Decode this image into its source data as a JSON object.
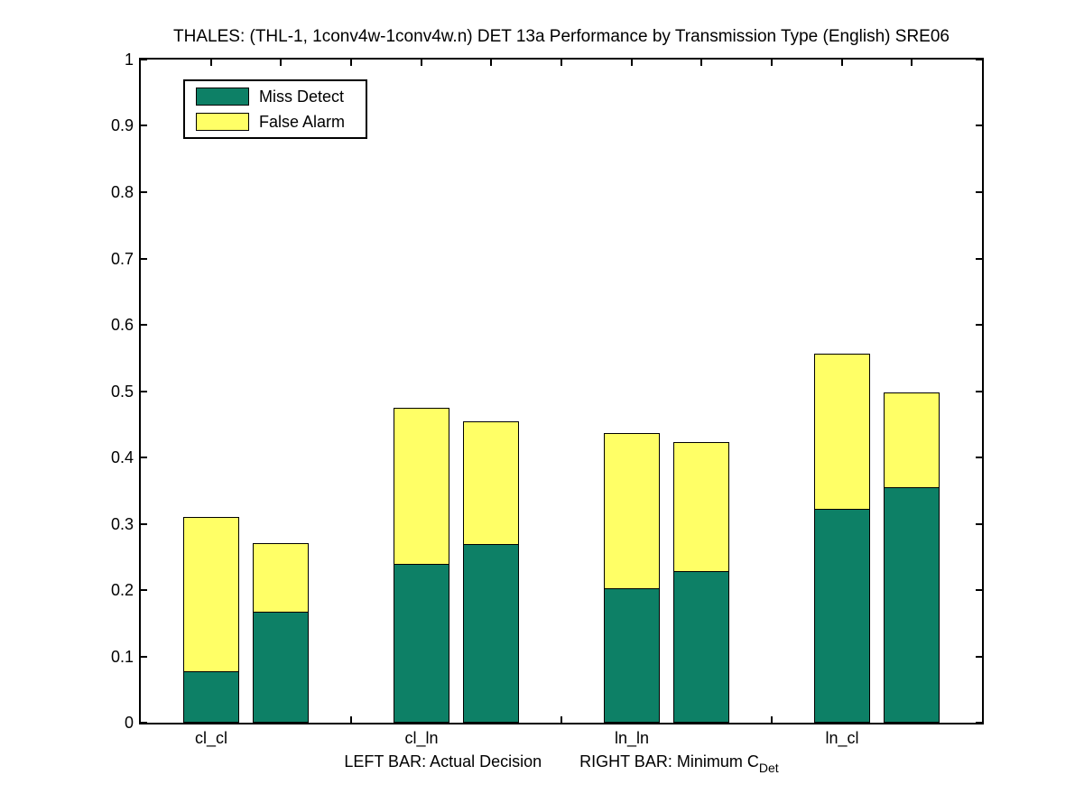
{
  "title": "THALES: (THL-1, 1conv4w-1conv4w.n) DET 13a Performance by Transmission Type (English) SRE06",
  "legend": {
    "position": "top-left",
    "items": [
      {
        "label": "Miss Detect",
        "color": "#0d8066"
      },
      {
        "label": "False Alarm",
        "color": "#ffff66"
      }
    ]
  },
  "footnote": {
    "left_text": "LEFT BAR: Actual Decision",
    "right_text": "RIGHT BAR: Minimum C",
    "right_sub": "Det"
  },
  "chart_data": {
    "type": "bar",
    "stacked": true,
    "title": "THALES: (THL-1, 1conv4w-1conv4w.n) DET 13a Performance by Transmission Type (English) SRE06",
    "categories": [
      "cl_cl",
      "cl_ln",
      "ln_ln",
      "ln_cl"
    ],
    "bar_variants": [
      "Actual Decision (left bar)",
      "Minimum CDet (right bar)"
    ],
    "series": [
      {
        "name": "Miss Detect",
        "color": "#0d8066",
        "actual": [
          0.078,
          0.24,
          0.203,
          0.322
        ],
        "minimum": [
          0.168,
          0.269,
          0.229,
          0.355
        ]
      },
      {
        "name": "False Alarm",
        "color": "#ffff66",
        "actual": [
          0.233,
          0.235,
          0.234,
          0.234
        ],
        "minimum": [
          0.104,
          0.185,
          0.194,
          0.143
        ]
      }
    ],
    "totals": {
      "actual": [
        0.311,
        0.475,
        0.437,
        0.556
      ],
      "minimum": [
        0.272,
        0.454,
        0.423,
        0.498
      ]
    },
    "ylim": [
      0,
      1
    ],
    "yticks": [
      0,
      0.1,
      0.2,
      0.3,
      0.4,
      0.5,
      0.6,
      0.7,
      0.8,
      0.9,
      1
    ],
    "ytick_labels": [
      "0",
      "0.1",
      "0.2",
      "0.3",
      "0.4",
      "0.5",
      "0.6",
      "0.7",
      "0.8",
      "0.9",
      "1"
    ],
    "xlabel": "LEFT BAR: Actual Decision     RIGHT BAR: Minimum C_Det",
    "grid": false,
    "legend_position": "top-left"
  }
}
